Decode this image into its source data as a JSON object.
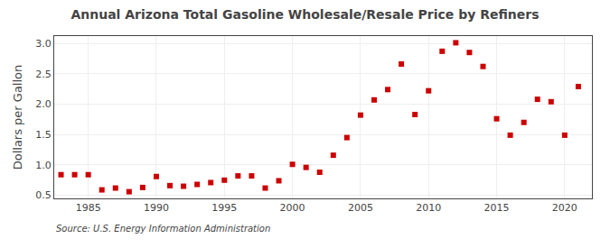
{
  "chart_data": {
    "type": "scatter",
    "title": "Annual Arizona Total Gasoline Wholesale/Resale Price by Refiners",
    "ylabel": "Dollars per Gallon",
    "annotations": [
      "Source: U.S. Energy Information Administration"
    ],
    "x": [
      1983,
      1984,
      1985,
      1986,
      1987,
      1988,
      1989,
      1990,
      1991,
      1992,
      1993,
      1994,
      1995,
      1996,
      1997,
      1998,
      1999,
      2000,
      2001,
      2002,
      2003,
      2004,
      2005,
      2006,
      2007,
      2008,
      2009,
      2010,
      2011,
      2012,
      2013,
      2014,
      2015,
      2016,
      2017,
      2018,
      2019,
      2020,
      2021
    ],
    "values": [
      0.84,
      0.84,
      0.84,
      0.59,
      0.62,
      0.56,
      0.63,
      0.81,
      0.66,
      0.65,
      0.68,
      0.71,
      0.75,
      0.82,
      0.82,
      0.62,
      0.74,
      1.01,
      0.96,
      0.88,
      1.16,
      1.45,
      1.82,
      2.07,
      2.24,
      2.66,
      1.83,
      2.22,
      2.87,
      3.01,
      2.85,
      2.62,
      1.76,
      1.49,
      1.7,
      2.08,
      2.04,
      1.49,
      2.29
    ],
    "color": "#cc0000",
    "marker": "square",
    "xlim": [
      1982.5,
      2022
    ],
    "ylim": [
      0.45,
      3.12
    ],
    "xticks": [
      1985,
      1990,
      1995,
      2000,
      2005,
      2010,
      2015,
      2020
    ],
    "yticks": [
      0.5,
      {
        "value": 1,
        "label": "1.0"
      },
      1.5,
      {
        "value": 2,
        "label": "2.0"
      },
      2.5,
      {
        "value": 3,
        "label": "3.0"
      }
    ],
    "grid": true
  }
}
